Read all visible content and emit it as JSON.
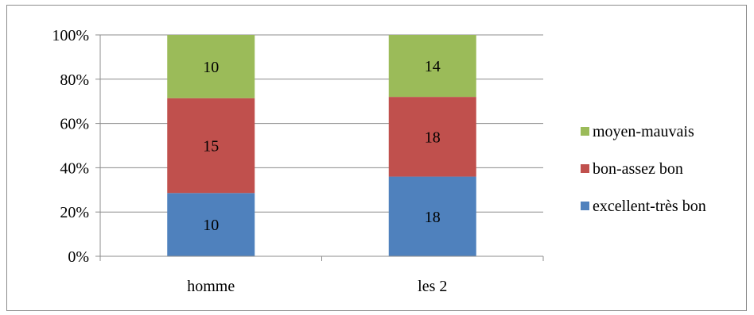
{
  "chart_data": {
    "type": "bar",
    "stacked": true,
    "normalized_percent": true,
    "categories": [
      "homme",
      "les 2"
    ],
    "series": [
      {
        "name": "excellent-très bon",
        "values": [
          10,
          18
        ],
        "color": "#4f81bd"
      },
      {
        "name": "bon-assez bon",
        "values": [
          15,
          18
        ],
        "color": "#c0504d"
      },
      {
        "name": "moyen-mauvais",
        "values": [
          10,
          14
        ],
        "color": "#9bbb59"
      }
    ],
    "yticks": [
      "0%",
      "20%",
      "40%",
      "60%",
      "80%",
      "100%"
    ],
    "ylim": [
      0,
      100
    ],
    "grid": true,
    "legend_position": "right",
    "title": "",
    "xlabel": "",
    "ylabel": ""
  }
}
